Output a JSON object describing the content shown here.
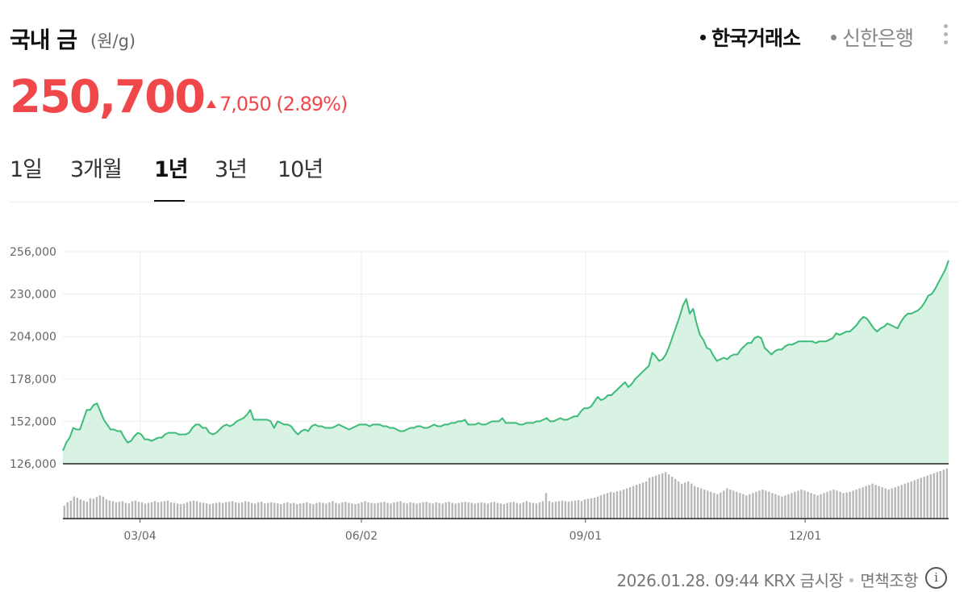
{
  "header": {
    "title": "국내 금",
    "unit": "(원/g)",
    "sources": [
      {
        "label": "한국거래소",
        "active": true
      },
      {
        "label": "신한은행",
        "active": false
      }
    ]
  },
  "quote": {
    "price": "250,700",
    "change": "7,050 (2.89%)",
    "direction": "up"
  },
  "tabs": [
    {
      "label": "1일",
      "active": false
    },
    {
      "label": "3개월",
      "active": false
    },
    {
      "label": "1년",
      "active": true
    },
    {
      "label": "3년",
      "active": false
    },
    {
      "label": "10년",
      "active": false
    }
  ],
  "footer": {
    "timestamp": "2026.01.28. 09:44 KRX 금시장",
    "disclaimer": "면책조항",
    "info_icon": "info-icon"
  },
  "colors": {
    "up": "#f0474b",
    "line": "#3dbb78",
    "area": "#d8f2e3",
    "volume": "#b8b8b8"
  },
  "chart_data": {
    "type": "area",
    "ylim": [
      126000,
      256000
    ],
    "yticks": [
      "256,000",
      "230,000",
      "204,000",
      "178,000",
      "152,000",
      "126,000"
    ],
    "ytick_values": [
      256000,
      230000,
      204000,
      178000,
      152000,
      126000
    ],
    "xticks": [
      "03/04",
      "06/02",
      "09/01",
      "12/01"
    ],
    "xtick_positions": [
      0.087,
      0.337,
      0.59,
      0.838
    ],
    "grid": true,
    "series": [
      {
        "values": [
          134000,
          139000,
          142000,
          148000,
          147000,
          147000,
          153000,
          159000,
          159000,
          162000,
          163000,
          158000,
          153000,
          150000,
          147000,
          147000,
          146000,
          146000,
          142000,
          139000,
          140000,
          143000,
          145000,
          144000,
          141000,
          141000,
          140000,
          141000,
          142000,
          142000,
          144000,
          145000,
          145000,
          145000,
          144000,
          144000,
          144000,
          145000,
          148000,
          150000,
          150000,
          148000,
          148000,
          145000,
          144000,
          145000,
          147000,
          149000,
          150000,
          149000,
          150000,
          152000,
          153000,
          154000,
          156000,
          159000,
          153000,
          153000,
          153000,
          153000,
          153000,
          152000,
          148000,
          152000,
          151000,
          150000,
          150000,
          149000,
          146000,
          144000,
          146000,
          147000,
          146000,
          149000,
          150000,
          149000,
          149000,
          148000,
          148000,
          148000,
          149000,
          150000,
          149000,
          148000,
          147000,
          148000,
          149000,
          150000,
          150000,
          150000,
          149000,
          150000,
          150000,
          150000,
          149000,
          149000,
          148000,
          148000,
          147000,
          146000,
          146000,
          147000,
          148000,
          148000,
          149000,
          149000,
          148000,
          148000,
          149000,
          150000,
          149000,
          149000,
          150000,
          150000,
          151000,
          151000,
          152000,
          152000,
          153000,
          150000,
          150000,
          150000,
          151000,
          150000,
          150000,
          151000,
          152000,
          152000,
          152000,
          154000,
          151000,
          151000,
          151000,
          151000,
          150000,
          150000,
          151000,
          151000,
          151000,
          152000,
          152000,
          153000,
          154000,
          152000,
          152000,
          153000,
          154000,
          153000,
          153000,
          154000,
          155000,
          155000,
          158000,
          160000,
          160000,
          161000,
          164000,
          167000,
          165000,
          166000,
          168000,
          168000,
          170000,
          172000,
          174000,
          176000,
          173000,
          175000,
          178000,
          180000,
          182000,
          184000,
          186000,
          194000,
          192000,
          189000,
          190000,
          193000,
          198000,
          204000,
          210000,
          216000,
          223000,
          227000,
          218000,
          221000,
          212000,
          205000,
          202000,
          197000,
          196000,
          192000,
          189000,
          190000,
          191000,
          190000,
          192000,
          193000,
          193000,
          196000,
          198000,
          200000,
          200000,
          203000,
          204000,
          203000,
          197000,
          195000,
          193000,
          195000,
          196000,
          196000,
          198000,
          199000,
          199000,
          200000,
          201000,
          201000,
          201000,
          201000,
          201000,
          200000,
          201000,
          201000,
          201000,
          202000,
          203000,
          206000,
          205000,
          206000,
          207000,
          207000,
          209000,
          211000,
          214000,
          216000,
          215000,
          212000,
          209000,
          207000,
          209000,
          210000,
          212000,
          211000,
          210000,
          209000,
          213000,
          216000,
          218000,
          218000,
          219000,
          220000,
          222000,
          225000,
          229000,
          230000,
          233000,
          237000,
          241000,
          245000,
          250700
        ]
      }
    ],
    "volume": [
      22,
      28,
      31,
      38,
      36,
      33,
      31,
      29,
      35,
      34,
      37,
      40,
      38,
      33,
      31,
      30,
      28,
      29,
      30,
      27,
      26,
      30,
      31,
      29,
      28,
      26,
      27,
      28,
      30,
      28,
      29,
      30,
      31,
      28,
      27,
      26,
      25,
      26,
      28,
      30,
      31,
      30,
      28,
      27,
      26,
      25,
      26,
      27,
      28,
      27,
      28,
      29,
      30,
      28,
      27,
      28,
      30,
      29,
      27,
      26,
      28,
      29,
      26,
      27,
      28,
      27,
      26,
      25,
      27,
      28,
      26,
      27,
      25,
      26,
      27,
      28,
      26,
      25,
      27,
      28,
      27,
      26,
      28,
      30,
      27,
      26,
      28,
      29,
      27,
      26,
      25,
      26,
      28,
      30,
      28,
      27,
      26,
      27,
      28,
      29,
      27,
      26,
      28,
      29,
      30,
      27,
      26,
      28,
      27,
      26,
      27,
      28,
      29,
      27,
      26,
      28,
      27,
      26,
      28,
      29,
      27,
      26,
      27,
      28,
      29,
      28,
      27,
      26,
      27,
      28,
      27,
      26,
      28,
      29,
      27,
      26,
      25,
      27,
      28,
      29,
      27,
      26,
      28,
      30,
      28,
      27,
      26,
      28,
      30,
      44,
      30,
      28,
      29,
      30,
      31,
      30,
      29,
      30,
      31,
      32,
      30,
      33,
      34,
      35,
      36,
      38,
      40,
      42,
      44,
      46,
      45,
      47,
      48,
      50,
      52,
      54,
      56,
      58,
      60,
      62,
      64,
      70,
      72,
      74,
      76,
      78,
      80,
      76,
      72,
      68,
      64,
      60,
      62,
      64,
      60,
      56,
      54,
      52,
      50,
      48,
      46,
      44,
      42,
      45,
      48,
      52,
      50,
      48,
      46,
      44,
      42,
      40,
      42,
      44,
      46,
      48,
      50,
      48,
      46,
      44,
      42,
      40,
      38,
      40,
      42,
      44,
      46,
      48,
      50,
      48,
      46,
      44,
      42,
      40,
      42,
      44,
      46,
      48,
      50,
      48,
      46,
      44,
      45,
      46,
      48,
      50,
      52,
      54,
      56,
      58,
      60,
      58,
      56,
      54,
      52,
      50,
      52,
      54,
      56,
      58,
      60,
      62,
      64,
      66,
      68,
      70,
      72,
      74,
      76,
      78,
      80,
      82,
      84,
      86
    ]
  }
}
